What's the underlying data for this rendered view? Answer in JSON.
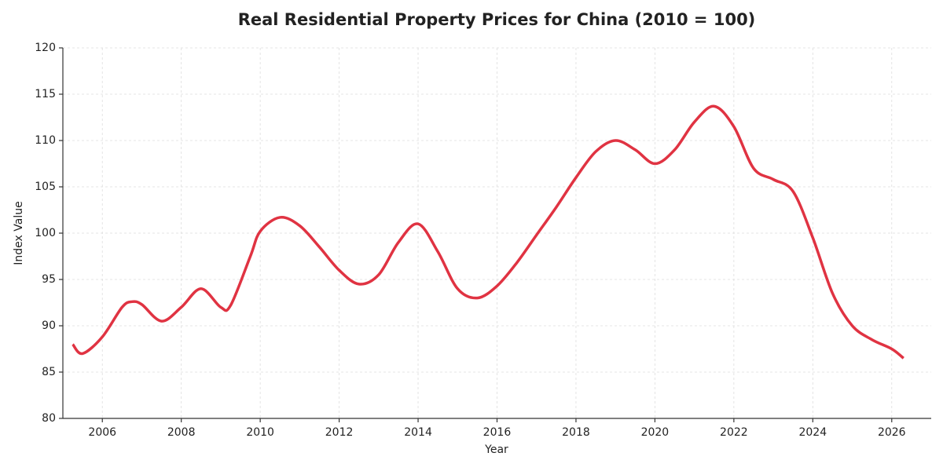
{
  "chart_data": {
    "type": "line",
    "title": "Real Residential Property Prices for China (2010 = 100)",
    "x_label": "Year",
    "y_label": "Index Value",
    "x": [
      2005.25,
      2005.5,
      2006.0,
      2006.5,
      2006.75,
      2007.0,
      2007.5,
      2008.0,
      2008.5,
      2009.0,
      2009.25,
      2009.75,
      2010.0,
      2010.5,
      2011.0,
      2011.5,
      2012.0,
      2012.5,
      2013.0,
      2013.5,
      2014.0,
      2014.5,
      2015.0,
      2015.5,
      2016.0,
      2016.5,
      2017.0,
      2017.5,
      2018.0,
      2018.5,
      2019.0,
      2019.5,
      2020.0,
      2020.5,
      2021.0,
      2021.5,
      2022.0,
      2022.5,
      2023.0,
      2023.5,
      2024.0,
      2024.5,
      2025.0,
      2025.5,
      2026.0,
      2026.3
    ],
    "series": [
      {
        "color": "#e03342",
        "values": [
          88.0,
          87.0,
          88.8,
          92.0,
          92.6,
          92.3,
          90.5,
          92.0,
          94.0,
          92.0,
          92.2,
          97.5,
          100.2,
          101.7,
          100.8,
          98.5,
          96.0,
          94.5,
          95.5,
          99.0,
          101.0,
          98.0,
          94.0,
          93.0,
          94.3,
          96.8,
          99.8,
          102.8,
          106.0,
          108.8,
          110.0,
          109.0,
          107.5,
          109.0,
          112.0,
          113.7,
          111.5,
          107.0,
          105.8,
          104.5,
          99.5,
          93.5,
          90.0,
          88.5,
          87.5,
          86.5
        ]
      }
    ],
    "xlim": [
      2005,
      2027
    ],
    "ylim": [
      80,
      120
    ],
    "xticks": [
      2006,
      2008,
      2010,
      2012,
      2014,
      2016,
      2018,
      2020,
      2022,
      2024,
      2026
    ],
    "yticks": [
      80,
      85,
      90,
      95,
      100,
      105,
      110,
      115,
      120
    ],
    "grid": true
  }
}
